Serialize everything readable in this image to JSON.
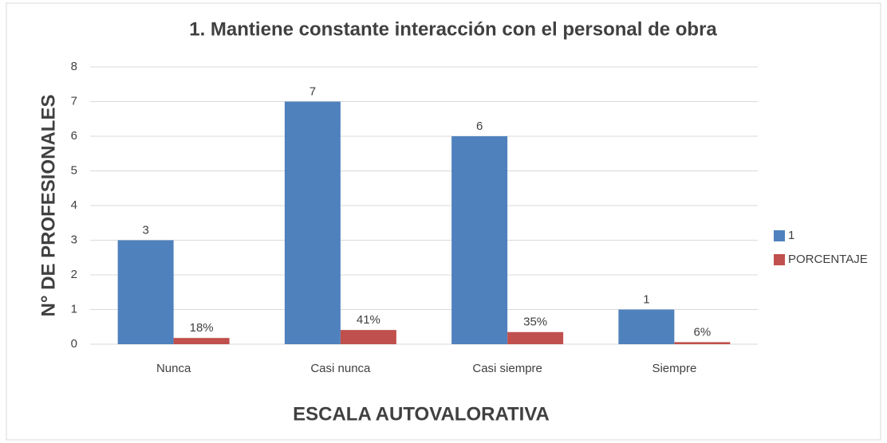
{
  "chart_data": {
    "type": "bar",
    "title": "1.  Mantiene constante interacción con el personal de obra",
    "x_label": "ESCALA AUTOVALORATIVA",
    "y_label": "N° DE PROFESIONALES",
    "categories": [
      "Nunca",
      "Casi nunca",
      "Casi siempre",
      "Siempre"
    ],
    "series": [
      {
        "name": "1",
        "color": "#4f81bd",
        "values": [
          3,
          7,
          6,
          1
        ]
      },
      {
        "name": "PORCENTAJE",
        "color": "#c0504d",
        "values": [
          0.18,
          0.41,
          0.35,
          0.06
        ],
        "value_labels": [
          "18%",
          "41%",
          "35%",
          "6%"
        ]
      }
    ],
    "ylim": [
      0,
      8
    ],
    "yticks": [
      0,
      1,
      2,
      3,
      4,
      5,
      6,
      7,
      8
    ],
    "grid": true,
    "legend": "right"
  }
}
